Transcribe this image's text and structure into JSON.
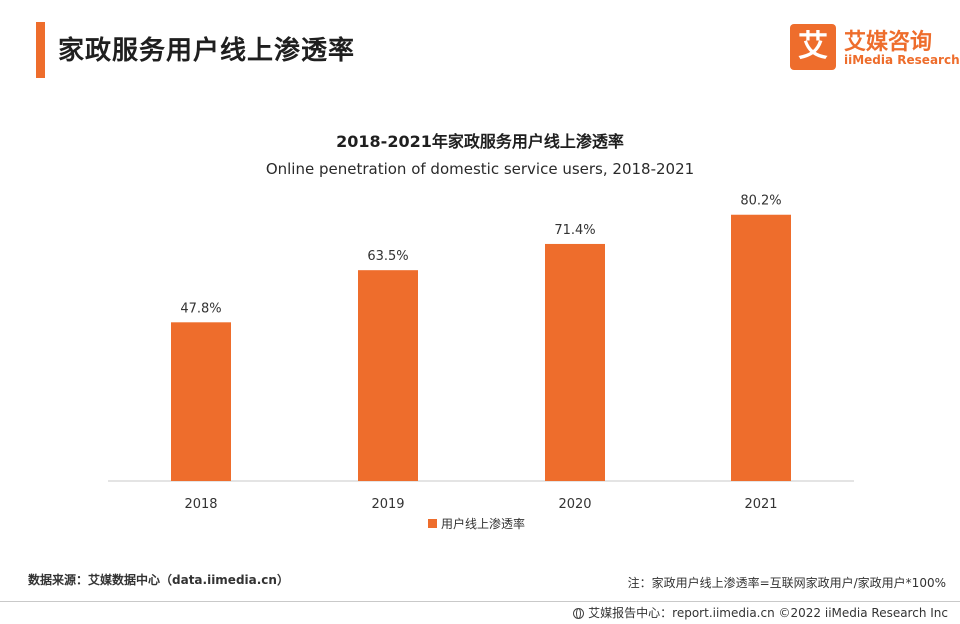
{
  "header": {
    "title": "家政服务用户线上渗透率",
    "logo_mark": "艾",
    "logo_cn": "艾媒咨询",
    "logo_en": "iiMedia Research",
    "accent_color": "#ee6d2c"
  },
  "chart_data": {
    "type": "bar",
    "title": "2018-2021年家政服务用户线上渗透率",
    "subtitle": "Online penetration of domestic service users, 2018-2021",
    "categories": [
      "2018",
      "2019",
      "2020",
      "2021"
    ],
    "series": [
      {
        "name": "用户线上渗透率",
        "values": [
          47.8,
          63.5,
          71.4,
          80.2
        ],
        "labels": [
          "47.8%",
          "63.5%",
          "71.4%",
          "80.2%"
        ],
        "color": "#ee6d2c"
      }
    ],
    "ylim": [
      0,
      100
    ],
    "grid": false,
    "legend_position": "bottom"
  },
  "footer": {
    "source": "数据来源：艾媒数据中心（data.iimedia.cn）",
    "note": "注：家政用户线上渗透率=互联网家政用户/家政用户*100%",
    "copyright": "艾媒报告中心：report.iimedia.cn  ©2022  iiMedia Research  Inc"
  }
}
